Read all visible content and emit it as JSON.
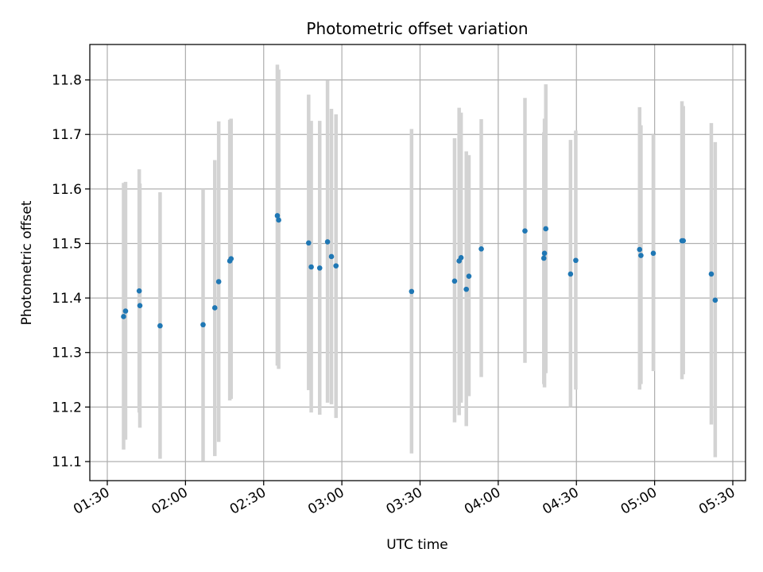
{
  "chart_data": {
    "type": "scatter",
    "title": "Photometric offset variation",
    "xlabel": "UTC time",
    "ylabel": "Photometric offset",
    "x_tick_labels": [
      "01:30",
      "02:00",
      "02:30",
      "03:00",
      "03:30",
      "04:00",
      "04:30",
      "05:00",
      "05:30"
    ],
    "y_tick_labels": [
      "11.1",
      "11.2",
      "11.3",
      "11.4",
      "11.5",
      "11.6",
      "11.7",
      "11.8"
    ],
    "xlim": [
      "01:30",
      "05:30"
    ],
    "ylim": [
      11.065,
      11.865
    ],
    "grid": true,
    "colors": {
      "marker": "#1f77b4",
      "errorbar": "#d3d3d3",
      "grid": "#b0b0b0"
    },
    "points": [
      {
        "t": "01:36:15",
        "y": 11.366,
        "lo": 11.122,
        "hi": 11.611
      },
      {
        "t": "01:37:00",
        "y": 11.376,
        "lo": 11.14,
        "hi": 11.613
      },
      {
        "t": "01:42:15",
        "y": 11.413,
        "lo": 11.19,
        "hi": 11.636
      },
      {
        "t": "01:42:30",
        "y": 11.386,
        "lo": 11.162,
        "hi": 11.61
      },
      {
        "t": "01:50:15",
        "y": 11.349,
        "lo": 11.105,
        "hi": 11.594
      },
      {
        "t": "02:06:45",
        "y": 11.351,
        "lo": 11.101,
        "hi": 11.6
      },
      {
        "t": "02:11:15",
        "y": 11.382,
        "lo": 11.11,
        "hi": 11.653
      },
      {
        "t": "02:12:45",
        "y": 11.43,
        "lo": 11.136,
        "hi": 11.724
      },
      {
        "t": "02:17:00",
        "y": 11.468,
        "lo": 11.212,
        "hi": 11.727
      },
      {
        "t": "02:17:30",
        "y": 11.472,
        "lo": 11.215,
        "hi": 11.729
      },
      {
        "t": "02:35:15",
        "y": 11.551,
        "lo": 11.276,
        "hi": 11.828
      },
      {
        "t": "02:35:45",
        "y": 11.543,
        "lo": 11.27,
        "hi": 11.819
      },
      {
        "t": "02:47:15",
        "y": 11.501,
        "lo": 11.231,
        "hi": 11.773
      },
      {
        "t": "02:48:15",
        "y": 11.457,
        "lo": 11.19,
        "hi": 11.725
      },
      {
        "t": "02:51:30",
        "y": 11.455,
        "lo": 11.186,
        "hi": 11.725
      },
      {
        "t": "02:54:30",
        "y": 11.503,
        "lo": 11.208,
        "hi": 11.799
      },
      {
        "t": "02:56:00",
        "y": 11.476,
        "lo": 11.205,
        "hi": 11.747
      },
      {
        "t": "02:57:45",
        "y": 11.459,
        "lo": 11.18,
        "hi": 11.737
      },
      {
        "t": "03:26:45",
        "y": 11.412,
        "lo": 11.115,
        "hi": 11.71
      },
      {
        "t": "03:43:15",
        "y": 11.431,
        "lo": 11.172,
        "hi": 11.693
      },
      {
        "t": "03:45:00",
        "y": 11.468,
        "lo": 11.185,
        "hi": 11.749
      },
      {
        "t": "03:45:45",
        "y": 11.474,
        "lo": 11.208,
        "hi": 11.74
      },
      {
        "t": "03:47:45",
        "y": 11.416,
        "lo": 11.165,
        "hi": 11.669
      },
      {
        "t": "03:48:45",
        "y": 11.44,
        "lo": 11.22,
        "hi": 11.662
      },
      {
        "t": "03:53:30",
        "y": 11.49,
        "lo": 11.255,
        "hi": 11.728
      },
      {
        "t": "04:10:15",
        "y": 11.523,
        "lo": 11.281,
        "hi": 11.767
      },
      {
        "t": "04:17:30",
        "y": 11.473,
        "lo": 11.242,
        "hi": 11.704
      },
      {
        "t": "04:17:45",
        "y": 11.482,
        "lo": 11.236,
        "hi": 11.729
      },
      {
        "t": "04:18:15",
        "y": 11.527,
        "lo": 11.262,
        "hi": 11.792
      },
      {
        "t": "04:27:45",
        "y": 11.444,
        "lo": 11.2,
        "hi": 11.69
      },
      {
        "t": "04:29:45",
        "y": 11.469,
        "lo": 11.232,
        "hi": 11.707
      },
      {
        "t": "04:54:15",
        "y": 11.489,
        "lo": 11.232,
        "hi": 11.75
      },
      {
        "t": "04:54:45",
        "y": 11.478,
        "lo": 11.242,
        "hi": 11.717
      },
      {
        "t": "04:59:30",
        "y": 11.482,
        "lo": 11.266,
        "hi": 11.7
      },
      {
        "t": "05:10:30",
        "y": 11.505,
        "lo": 11.251,
        "hi": 11.761
      },
      {
        "t": "05:11:00",
        "y": 11.505,
        "lo": 11.26,
        "hi": 11.752
      },
      {
        "t": "05:21:45",
        "y": 11.444,
        "lo": 11.168,
        "hi": 11.721
      },
      {
        "t": "05:23:15",
        "y": 11.396,
        "lo": 11.108,
        "hi": 11.686
      }
    ]
  }
}
